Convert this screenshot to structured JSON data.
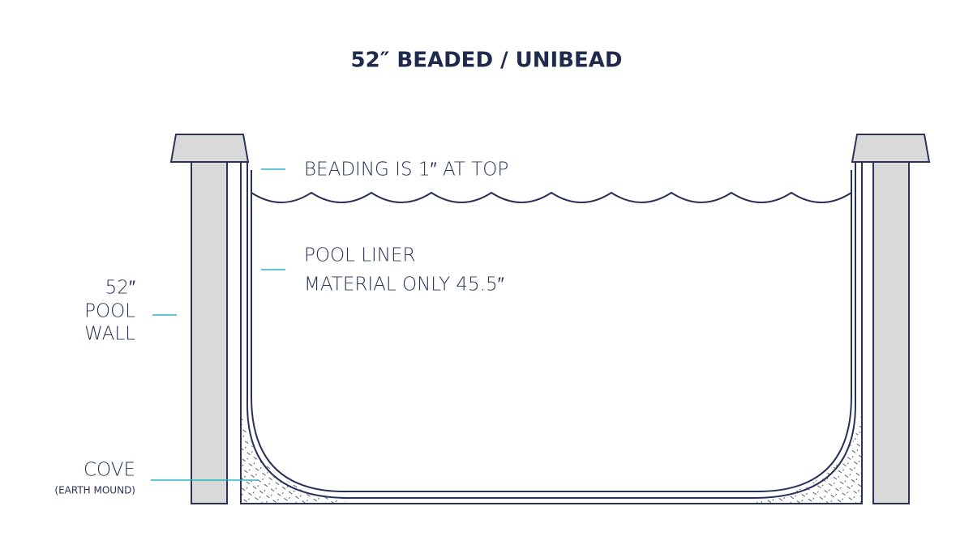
{
  "title": "52″ BEADED / UNIBEAD",
  "labels": {
    "beading": "BEADING IS 1″ AT TOP",
    "liner": [
      "POOL LINER",
      "MATERIAL ONLY 45.5″"
    ],
    "wall": [
      "52″",
      "POOL",
      "WALL"
    ],
    "cove": "COVE",
    "cove_note": "(EARTH MOUND)"
  }
}
